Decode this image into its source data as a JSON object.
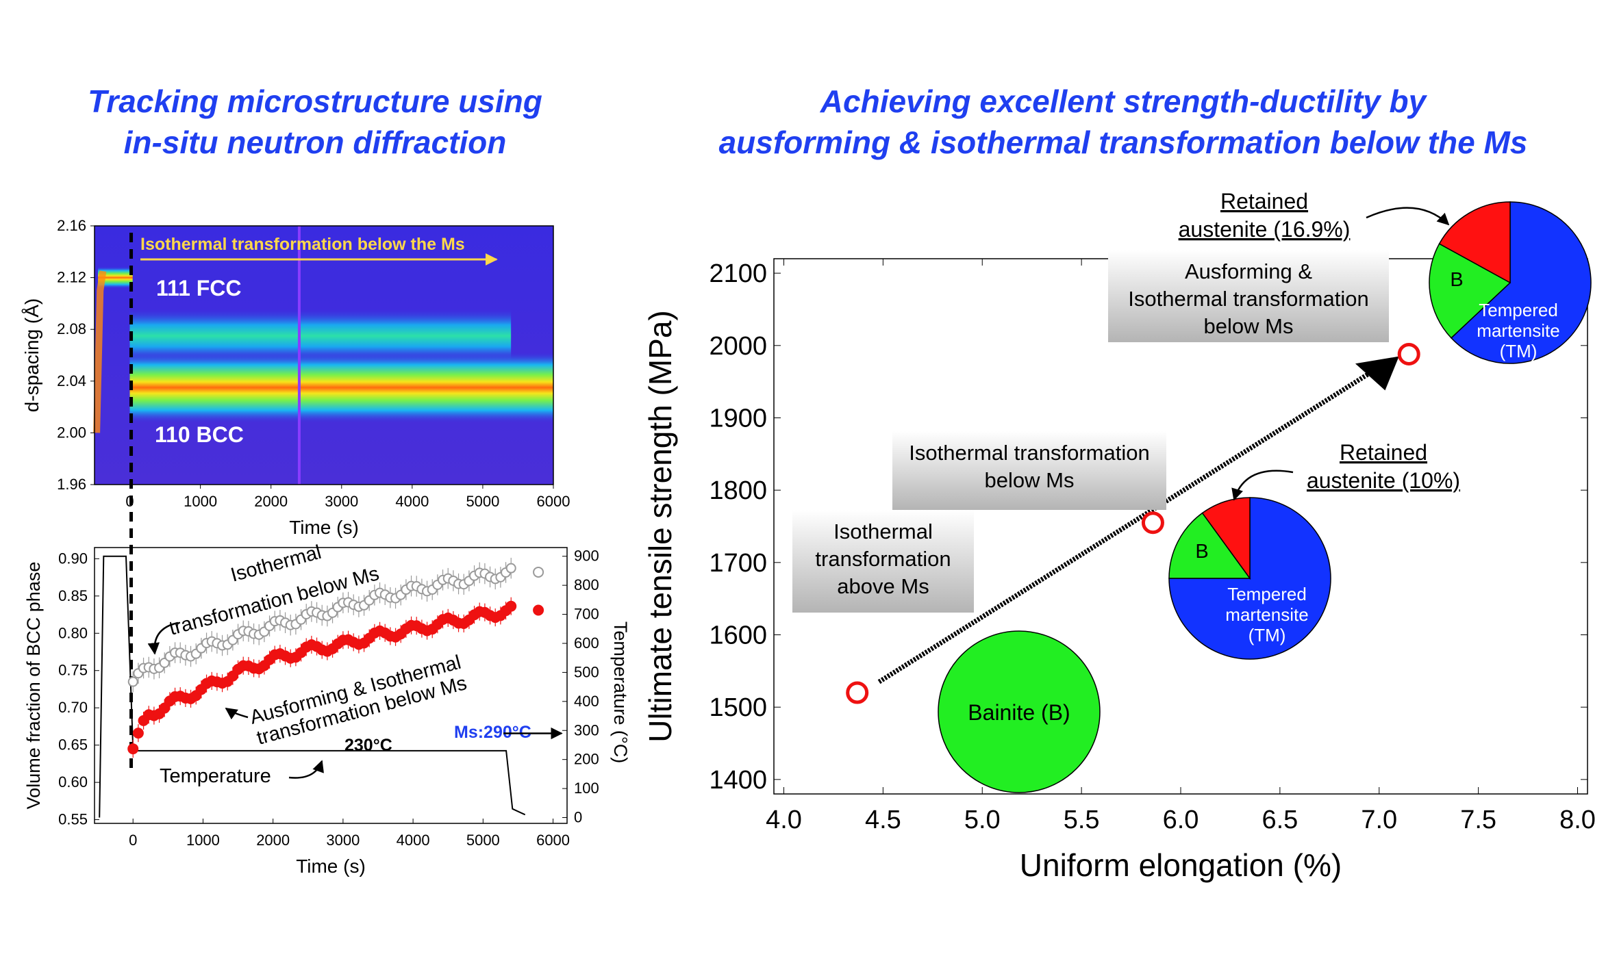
{
  "titles": {
    "left": [
      "Tracking microstructure using",
      "in-situ neutron diffraction"
    ],
    "right": [
      "Achieving excellent strength-ductility by",
      "ausforming & isothermal transformation below the Ms"
    ]
  },
  "colors": {
    "title": "#1f3ff0",
    "red": "#ee1111",
    "gray": "#9a9a9a",
    "pie_blue": "#1233ff",
    "pie_green": "#22ee22",
    "pie_red": "#ff1111"
  },
  "chart_data": [
    {
      "type": "heatmap",
      "title": "",
      "xlabel": "Time (s)",
      "ylabel": "d-spacing (Å)",
      "xlim": [
        -500,
        6000
      ],
      "ylim": [
        1.96,
        2.16
      ],
      "x_ticks": [
        "0",
        "1000",
        "2000",
        "3000",
        "4000",
        "5000",
        "6000"
      ],
      "y_ticks": [
        "1.96",
        "2.00",
        "2.04",
        "2.08",
        "2.12",
        "2.16"
      ],
      "annotations": [
        "Isothermal transformation below the Ms",
        "111 FCC",
        "110 BCC"
      ],
      "bands": [
        {
          "name": "111 FCC",
          "d": 2.12,
          "t_range": [
            -450,
            40
          ]
        },
        {
          "name": "111 FCC",
          "d": 2.075,
          "t_range": [
            0,
            5400
          ]
        },
        {
          "name": "110 BCC",
          "d": 2.035,
          "t_range": [
            0,
            6000
          ]
        }
      ]
    },
    {
      "type": "scatter",
      "title": "",
      "xlabel": "Time (s)",
      "ylabel": "Volume fraction of BCC phase",
      "y2label": "Temperature (°C)",
      "xlim": [
        -550,
        6200
      ],
      "ylim": [
        0.545,
        0.915
      ],
      "y2lim": [
        -20,
        930
      ],
      "x_ticks": [
        "0",
        "1000",
        "2000",
        "3000",
        "4000",
        "5000",
        "6000"
      ],
      "y_ticks": [
        "0.55",
        "0.60",
        "0.65",
        "0.70",
        "0.75",
        "0.80",
        "0.85",
        "0.90"
      ],
      "y2_ticks": [
        "0",
        "100",
        "200",
        "300",
        "400",
        "500",
        "600",
        "700",
        "800",
        "900"
      ],
      "annotations": {
        "iso": "Isothermal transformation below Ms",
        "aus": "Ausforming & Isothermal transformation below Ms",
        "temperature": "Temperature",
        "hold": "230°C",
        "ms": "Ms:290°C"
      },
      "series": [
        {
          "name": "Isothermal transformation below Ms",
          "marker": "open-circle",
          "color": "#9a9a9a",
          "x": [
            0,
            200,
            500,
            1000,
            1500,
            2000,
            2500,
            3000,
            3500,
            4000,
            4500,
            5000,
            5400
          ],
          "y": [
            0.735,
            0.752,
            0.765,
            0.78,
            0.795,
            0.81,
            0.822,
            0.835,
            0.848,
            0.858,
            0.868,
            0.876,
            0.882
          ]
        },
        {
          "name": "Ausforming & Isothermal transformation below Ms",
          "marker": "filled-circle",
          "color": "#ee1111",
          "x": [
            0,
            200,
            500,
            1000,
            1500,
            2000,
            2500,
            3000,
            3500,
            4000,
            4500,
            5000,
            5400
          ],
          "y": [
            0.645,
            0.688,
            0.705,
            0.725,
            0.748,
            0.765,
            0.778,
            0.785,
            0.797,
            0.805,
            0.815,
            0.824,
            0.831
          ]
        },
        {
          "name": "Temperature",
          "marker": "line",
          "color": "#000000",
          "x": [
            -480,
            -420,
            -200,
            -100,
            0,
            40,
            80,
            5300,
            5330,
            5420,
            5600
          ],
          "y": [
            0,
            900,
            900,
            900,
            240,
            230,
            230,
            230,
            230,
            30,
            10
          ]
        }
      ]
    },
    {
      "type": "scatter",
      "title": "",
      "xlabel": "Uniform elongation (%)",
      "ylabel": "Ultimate tensile strength (MPa)",
      "xlim": [
        3.95,
        8.05
      ],
      "ylim": [
        1380,
        2120
      ],
      "x_ticks": [
        "4.0",
        "4.5",
        "5.0",
        "5.5",
        "6.0",
        "6.5",
        "7.0",
        "7.5",
        "8.0"
      ],
      "y_ticks": [
        "1400",
        "1500",
        "1600",
        "1700",
        "1800",
        "1900",
        "2000",
        "2100"
      ],
      "points": [
        {
          "label": "Isothermal transformation above Ms",
          "x": 4.37,
          "y": 1520,
          "pie": {
            "B": 100,
            "label": "Bainite (B)"
          }
        },
        {
          "label": "Isothermal transformation below Ms",
          "x": 5.86,
          "y": 1755,
          "retained": "Retained austenite (10%)",
          "pie": {
            "TM": 75,
            "B": 15,
            "RA": 10
          }
        },
        {
          "label": "Ausforming & Isothermal transformation below Ms",
          "x": 7.15,
          "y": 1988,
          "retained": "Retained austenite (16.9%)",
          "pie": {
            "TM": 63,
            "B": 20,
            "RA": 17
          }
        }
      ],
      "pie_labels": {
        "B": "B",
        "TM": [
          "Tempered",
          "martensite",
          "(TM)"
        ],
        "bainite": "Bainite (B)"
      },
      "boxes": {
        "above": [
          "Isothermal",
          "transformation",
          "above Ms"
        ],
        "below": [
          "Isothermal transformation",
          "below Ms"
        ],
        "ausforming": [
          "Ausforming &",
          "Isothermal transformation",
          "below Ms"
        ]
      },
      "retained_labels": {
        "small": [
          "Retained",
          "austenite (10%)"
        ],
        "large": [
          "Retained",
          "austenite (16.9%)"
        ]
      }
    }
  ]
}
